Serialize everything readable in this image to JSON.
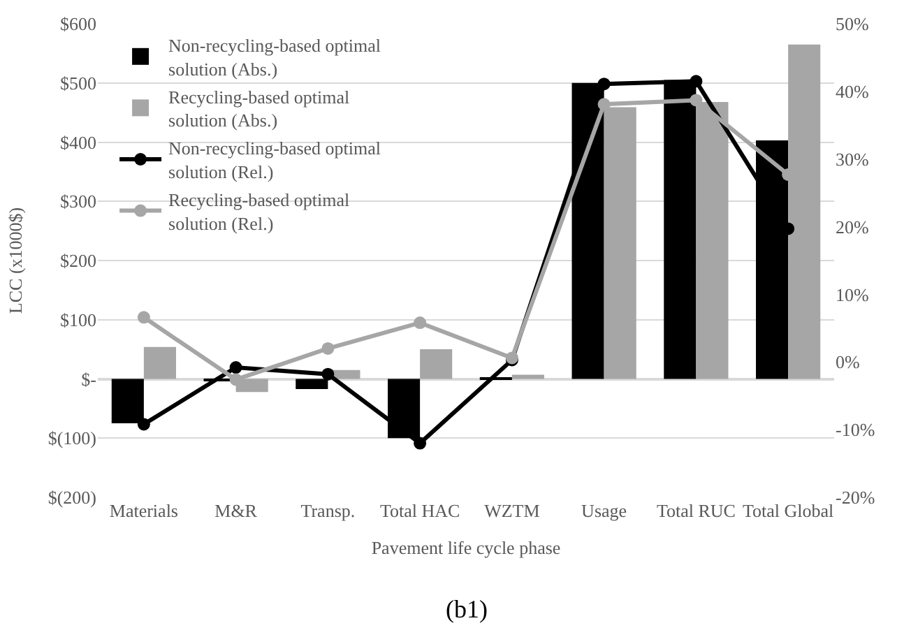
{
  "chart_data": {
    "type": "bar",
    "xlabel": "Pavement life cycle phase",
    "ylabel": "LCC (x1000$)",
    "categories": [
      "Materials",
      "M&R",
      "Transp.",
      "Total HAC",
      "WZTM",
      "Usage",
      "Total RUC",
      "Total Global"
    ],
    "series": [
      {
        "name": "Non-recycling-based optimal solution (Abs.)",
        "color": "#000000",
        "values": [
          -75,
          -3,
          -17,
          -100,
          2,
          500,
          505,
          403
        ]
      },
      {
        "name": "Recycling-based optimal solution (Abs.)",
        "color": "#a6a6a6",
        "values": [
          54,
          -22,
          15,
          50,
          7,
          459,
          468,
          565
        ]
      },
      {
        "name": "Non-recycling-based optimal solution (Rel.)",
        "type": "line",
        "axis": "y2",
        "color": "#000000",
        "values": [
          -9.2,
          -0.8,
          -1.8,
          -12,
          0.3,
          41.1,
          41.5,
          19.7
        ]
      },
      {
        "name": "Recycling-based optimal solution (Rel.)",
        "type": "line",
        "axis": "y2",
        "color": "#a6a6a6",
        "values": [
          6.6,
          -2.6,
          2,
          5.8,
          0.6,
          38.1,
          38.7,
          27.7
        ]
      }
    ],
    "ylim": [
      -200,
      600
    ],
    "yticks": [
      {
        "value": -200,
        "label": "$(200)"
      },
      {
        "value": -100,
        "label": "$(100)"
      },
      {
        "value": 0,
        "label": "$-"
      },
      {
        "value": 100,
        "label": "$100"
      },
      {
        "value": 200,
        "label": "$200"
      },
      {
        "value": 300,
        "label": "$300"
      },
      {
        "value": 400,
        "label": "$400"
      },
      {
        "value": 500,
        "label": "$500"
      },
      {
        "value": 600,
        "label": "$600"
      }
    ],
    "y2lim": [
      -20,
      50
    ],
    "y2ticks": [
      {
        "value": -20,
        "label": "-20%"
      },
      {
        "value": -10,
        "label": "-10%"
      },
      {
        "value": 0,
        "label": "0%"
      },
      {
        "value": 10,
        "label": "10%"
      },
      {
        "value": 20,
        "label": "20%"
      },
      {
        "value": 30,
        "label": "30%"
      },
      {
        "value": 40,
        "label": "40%"
      },
      {
        "value": 50,
        "label": "50%"
      }
    ],
    "grid": "y",
    "legend": "top left",
    "marker": "circle",
    "annotations": [
      "(b1)"
    ]
  }
}
